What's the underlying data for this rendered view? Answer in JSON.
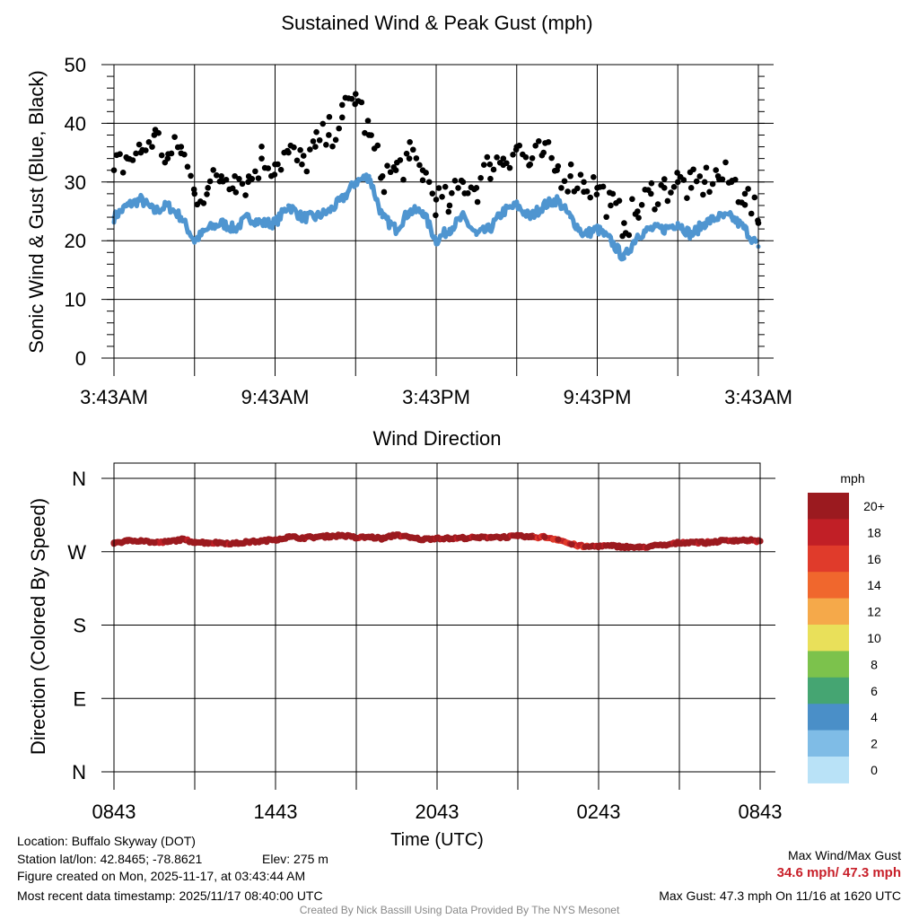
{
  "chart_data": [
    {
      "type": "line",
      "title": "Sustained Wind & Peak Gust (mph)",
      "xlabel": "",
      "ylabel": "Sonic Wind & Gust (Blue, Black)",
      "ylim": [
        0,
        50
      ],
      "yticks": [
        "0",
        "10",
        "20",
        "30",
        "40",
        "50"
      ],
      "xticks": [
        "3:43AM",
        "9:43AM",
        "3:43PM",
        "9:43PM",
        "3:43AM"
      ],
      "xlim_hours": [
        0,
        24
      ],
      "series": [
        {
          "name": "Sustained Wind",
          "color": "#4f95d0",
          "x_hours": [
            0,
            0.5,
            1,
            1.5,
            2,
            2.5,
            3,
            3.5,
            4,
            4.5,
            5,
            5.5,
            6,
            6.5,
            7,
            7.5,
            8,
            8.5,
            9,
            9.5,
            10,
            10.5,
            11,
            11.5,
            12,
            12.5,
            13,
            13.5,
            14,
            14.5,
            15,
            15.5,
            16,
            16.5,
            17,
            17.5,
            18,
            18.5,
            19,
            19.5,
            20,
            20.5,
            21,
            21.5,
            22,
            22.5,
            23,
            23.5,
            24
          ],
          "values": [
            24,
            26,
            27,
            25,
            26,
            24,
            20,
            22,
            23,
            22,
            24,
            23,
            23,
            26,
            24,
            24,
            25,
            27,
            30,
            31,
            24,
            22,
            25,
            25,
            20,
            22,
            24,
            21,
            22,
            25,
            26,
            24,
            26,
            27,
            24,
            21,
            22,
            20,
            17,
            21,
            22,
            22,
            23,
            21,
            23,
            24,
            24,
            22,
            19
          ]
        },
        {
          "name": "Peak Gust",
          "color": "#000000",
          "x_hours": [
            0,
            0.5,
            1,
            1.5,
            2,
            2.5,
            3,
            3.5,
            4,
            4.5,
            5,
            5.5,
            6,
            6.5,
            7,
            7.5,
            8,
            8.5,
            9,
            9.5,
            10,
            10.5,
            11,
            11.5,
            12,
            12.5,
            13,
            13.5,
            14,
            14.5,
            15,
            15.5,
            16,
            16.5,
            17,
            17.5,
            18,
            18.5,
            19,
            19.5,
            20,
            20.5,
            21,
            21.5,
            22,
            22.5,
            23,
            23.5,
            24
          ],
          "values": [
            32,
            34,
            35,
            38,
            34,
            36,
            28,
            29,
            31,
            31,
            30,
            34,
            33,
            35,
            33,
            36,
            38,
            41,
            45,
            38,
            31,
            32,
            34,
            32,
            27,
            26,
            30,
            29,
            33,
            34,
            36,
            33,
            35,
            32,
            31,
            30,
            29,
            26,
            23,
            25,
            28,
            29,
            30,
            29,
            30,
            31,
            30,
            28,
            23
          ]
        }
      ]
    },
    {
      "type": "scatter",
      "title": "Wind Direction",
      "xlabel": "Time (UTC)",
      "ylabel": "Direction (Colored By Speed)",
      "yticks": [
        "N",
        "E",
        "S",
        "W",
        "N"
      ],
      "ylim_degrees": [
        0,
        360
      ],
      "xticks": [
        "0843",
        "1443",
        "2043",
        "0243",
        "0843"
      ],
      "xlim_hours": [
        0,
        24
      ],
      "series": [
        {
          "name": "Wind Direction",
          "x_hours": [
            0,
            0.5,
            1,
            1.5,
            2,
            2.5,
            3,
            3.5,
            4,
            4.5,
            5,
            5.5,
            6,
            6.5,
            7,
            7.5,
            8,
            8.5,
            9,
            9.5,
            10,
            10.5,
            11,
            11.5,
            12,
            12.5,
            13,
            13.5,
            14,
            14.5,
            15,
            15.5,
            16,
            16.5,
            17,
            17.5,
            18,
            18.5,
            19,
            19.5,
            20,
            20.5,
            21,
            21.5,
            22,
            22.5,
            23,
            23.5,
            24
          ],
          "values": [
            281,
            283,
            284,
            281,
            282,
            285,
            282,
            281,
            281,
            280,
            282,
            283,
            285,
            288,
            287,
            288,
            289,
            290,
            287,
            288,
            286,
            291,
            287,
            285,
            287,
            286,
            287,
            287,
            288,
            288,
            289,
            288,
            288,
            285,
            279,
            276,
            277,
            277,
            276,
            275,
            277,
            278,
            281,
            282,
            281,
            283,
            284,
            284,
            283
          ],
          "color": "#9b1a1f"
        }
      ],
      "colorbar": {
        "title": "mph",
        "labels": [
          "20+",
          "18",
          "16",
          "14",
          "12",
          "10",
          "8",
          "6",
          "4",
          "2",
          "0"
        ],
        "colors": [
          "#9b1a1f",
          "#c11f26",
          "#e03b2b",
          "#f0672d",
          "#f5a94a",
          "#e9e05a",
          "#7cc24c",
          "#45a572",
          "#4a8fc8",
          "#7fbce6",
          "#b9e2f7"
        ]
      }
    }
  ],
  "info": {
    "location": "Location: Buffalo Skyway (DOT)",
    "station": "Station lat/lon: 42.8465; -78.8621",
    "elev": "Elev: 275 m",
    "created": "Figure created on Mon, 2025-11-17, at 03:43:44 AM",
    "recent": "Most recent data timestamp: 2025/11/17 08:40:00 UTC",
    "max_label": "Max Wind/Max Gust",
    "max_values": "34.6 mph/ 47.3 mph",
    "max_gust_line": "Max Gust: 47.3 mph On 11/16 at 1620 UTC",
    "credit": "Created By Nick Bassill Using Data Provided By The NYS Mesonet"
  }
}
